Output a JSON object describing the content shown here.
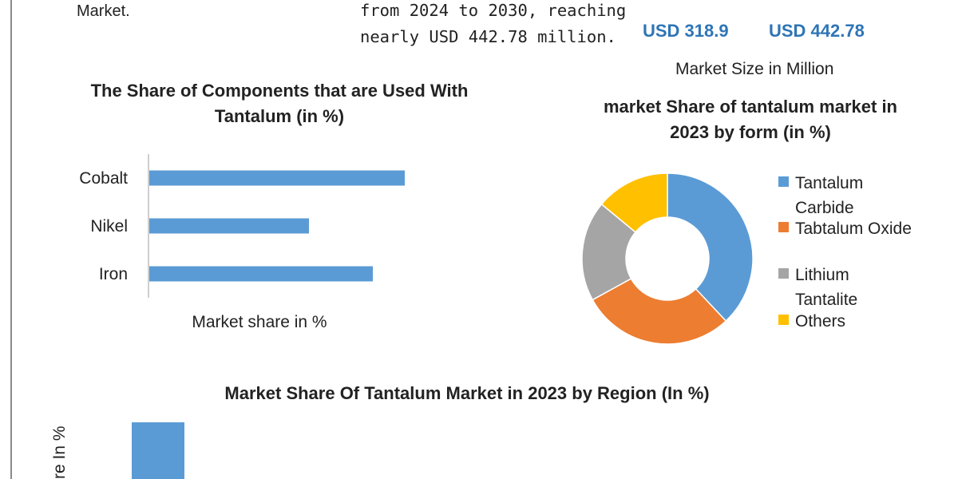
{
  "header": {
    "intro_tail": "Market.",
    "desc_lines": [
      "from 2024 to 2030, reaching",
      "nearly USD 442.78 million."
    ],
    "usd_a": "USD 318.9",
    "usd_b": "USD 442.78",
    "market_size_label": "Market Size in Million"
  },
  "colors": {
    "blue": "#5b9bd5",
    "orange": "#ed7d31",
    "gray": "#a5a5a5",
    "yellow": "#ffc000",
    "usd_blue": "#2e75b6"
  },
  "chart_data": [
    {
      "type": "bar",
      "orientation": "horizontal",
      "title": "The Share of Components that are Used With Tantalum (in %)",
      "categories": [
        "Cobalt",
        "Nikel",
        "Iron"
      ],
      "values": [
        80,
        50,
        70
      ],
      "xlabel": "Market share in %",
      "ylabel": "",
      "xlim": [
        0,
        100
      ]
    },
    {
      "type": "pie",
      "donut": true,
      "title": "market Share of tantalum market in 2023 by form (in %)",
      "labels": [
        "Tantalum Carbide",
        "Tabtalum Oxide",
        "Lithium Tantalite",
        "Others"
      ],
      "legend_lines": [
        [
          "Tantalum",
          "Carbide"
        ],
        [
          "Tabtalum Oxide"
        ],
        [
          "Lithium",
          "Tantalite"
        ],
        [
          "Others"
        ]
      ],
      "values": [
        38,
        29,
        19,
        14
      ],
      "legend_position": "right"
    },
    {
      "type": "bar",
      "title": "Market Share Of Tantalum Market in 2023 by Region (In %)",
      "ylabel": "Market Share In %",
      "visible_ylabel": "re In %",
      "categories": [
        ""
      ],
      "values": [
        null
      ]
    }
  ]
}
